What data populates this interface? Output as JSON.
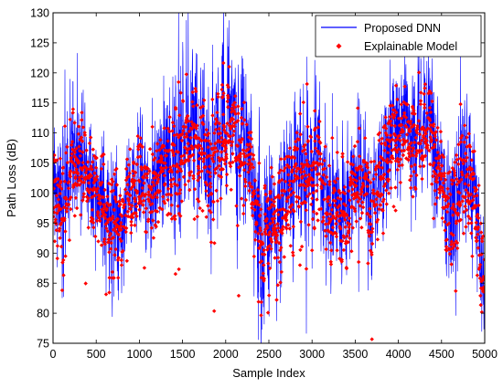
{
  "chart_data": {
    "type": "line",
    "title": "",
    "xlabel": "Sample Index",
    "ylabel": "Path Loss (dB)",
    "xlim": [
      0,
      5000
    ],
    "ylim": [
      75,
      130
    ],
    "xticks": [
      0,
      500,
      1000,
      1500,
      2000,
      2500,
      3000,
      3500,
      4000,
      4500,
      5000
    ],
    "yticks": [
      75,
      80,
      85,
      90,
      95,
      100,
      105,
      110,
      115,
      120,
      125,
      130
    ],
    "grid": false,
    "legend": {
      "position": "top-right",
      "entries": [
        "Proposed DNN",
        "Explainable Model"
      ]
    },
    "colors": {
      "dnn": "#0000ff",
      "explainable": "#ff0000"
    },
    "num_samples": 5000,
    "series": [
      {
        "name": "Proposed DNN",
        "style": "line",
        "center_x": [
          0,
          100,
          200,
          300,
          400,
          500,
          600,
          700,
          800,
          900,
          1000,
          1100,
          1200,
          1300,
          1400,
          1500,
          1600,
          1700,
          1800,
          1900,
          2000,
          2100,
          2200,
          2300,
          2400,
          2500,
          2600,
          2700,
          2800,
          2900,
          3000,
          3100,
          3200,
          3300,
          3400,
          3500,
          3600,
          3700,
          3800,
          3900,
          4000,
          4100,
          4200,
          4300,
          4400,
          4500,
          4600,
          4700,
          4800,
          4900,
          5000
        ],
        "center_y": [
          102,
          97,
          105,
          108,
          104,
          101,
          99,
          94,
          97,
          101,
          104,
          100,
          103,
          105,
          108,
          111,
          112,
          110,
          106,
          108,
          111,
          113,
          109,
          104,
          93,
          94,
          97,
          99,
          104,
          106,
          107,
          102,
          99,
          97,
          96,
          104,
          102,
          96,
          104,
          108,
          111,
          112,
          110,
          112,
          110,
          104,
          98,
          102,
          101,
          99,
          85
        ],
        "spread": [
          9,
          12,
          11,
          9,
          8,
          8,
          9,
          12,
          10,
          9,
          9,
          8,
          9,
          10,
          10,
          13,
          13,
          12,
          11,
          10,
          11,
          11,
          11,
          10,
          14,
          10,
          10,
          9,
          11,
          10,
          9,
          10,
          9,
          10,
          11,
          10,
          10,
          10,
          10,
          9,
          9,
          9,
          9,
          10,
          9,
          9,
          11,
          10,
          10,
          11,
          7
        ]
      },
      {
        "name": "Explainable Model",
        "style": "markers",
        "center_x": [
          0,
          100,
          200,
          300,
          400,
          500,
          600,
          700,
          800,
          900,
          1000,
          1100,
          1200,
          1300,
          1400,
          1500,
          1600,
          1700,
          1800,
          1900,
          2000,
          2100,
          2200,
          2300,
          2400,
          2500,
          2600,
          2700,
          2800,
          2900,
          3000,
          3100,
          3200,
          3300,
          3400,
          3500,
          3600,
          3700,
          3800,
          3900,
          4000,
          4100,
          4200,
          4300,
          4400,
          4500,
          4600,
          4700,
          4800,
          4900,
          5000
        ],
        "center_y": [
          101,
          95,
          103,
          106,
          103,
          100,
          98,
          94,
          97,
          100,
          103,
          100,
          102,
          104,
          106,
          108,
          109,
          108,
          105,
          107,
          109,
          110,
          107,
          103,
          93,
          94,
          96,
          98,
          103,
          105,
          105,
          101,
          98,
          96,
          95,
          102,
          101,
          96,
          103,
          107,
          109,
          110,
          109,
          110,
          108,
          103,
          97,
          101,
          100,
          98,
          85
        ],
        "spread": [
          7,
          10,
          9,
          7,
          6,
          6,
          7,
          9,
          8,
          7,
          7,
          6,
          7,
          8,
          8,
          9,
          9,
          9,
          8,
          8,
          8,
          8,
          8,
          8,
          10,
          8,
          8,
          7,
          8,
          8,
          7,
          8,
          7,
          8,
          8,
          8,
          8,
          8,
          8,
          7,
          7,
          7,
          7,
          8,
          7,
          7,
          8,
          8,
          8,
          9,
          6
        ]
      }
    ]
  }
}
